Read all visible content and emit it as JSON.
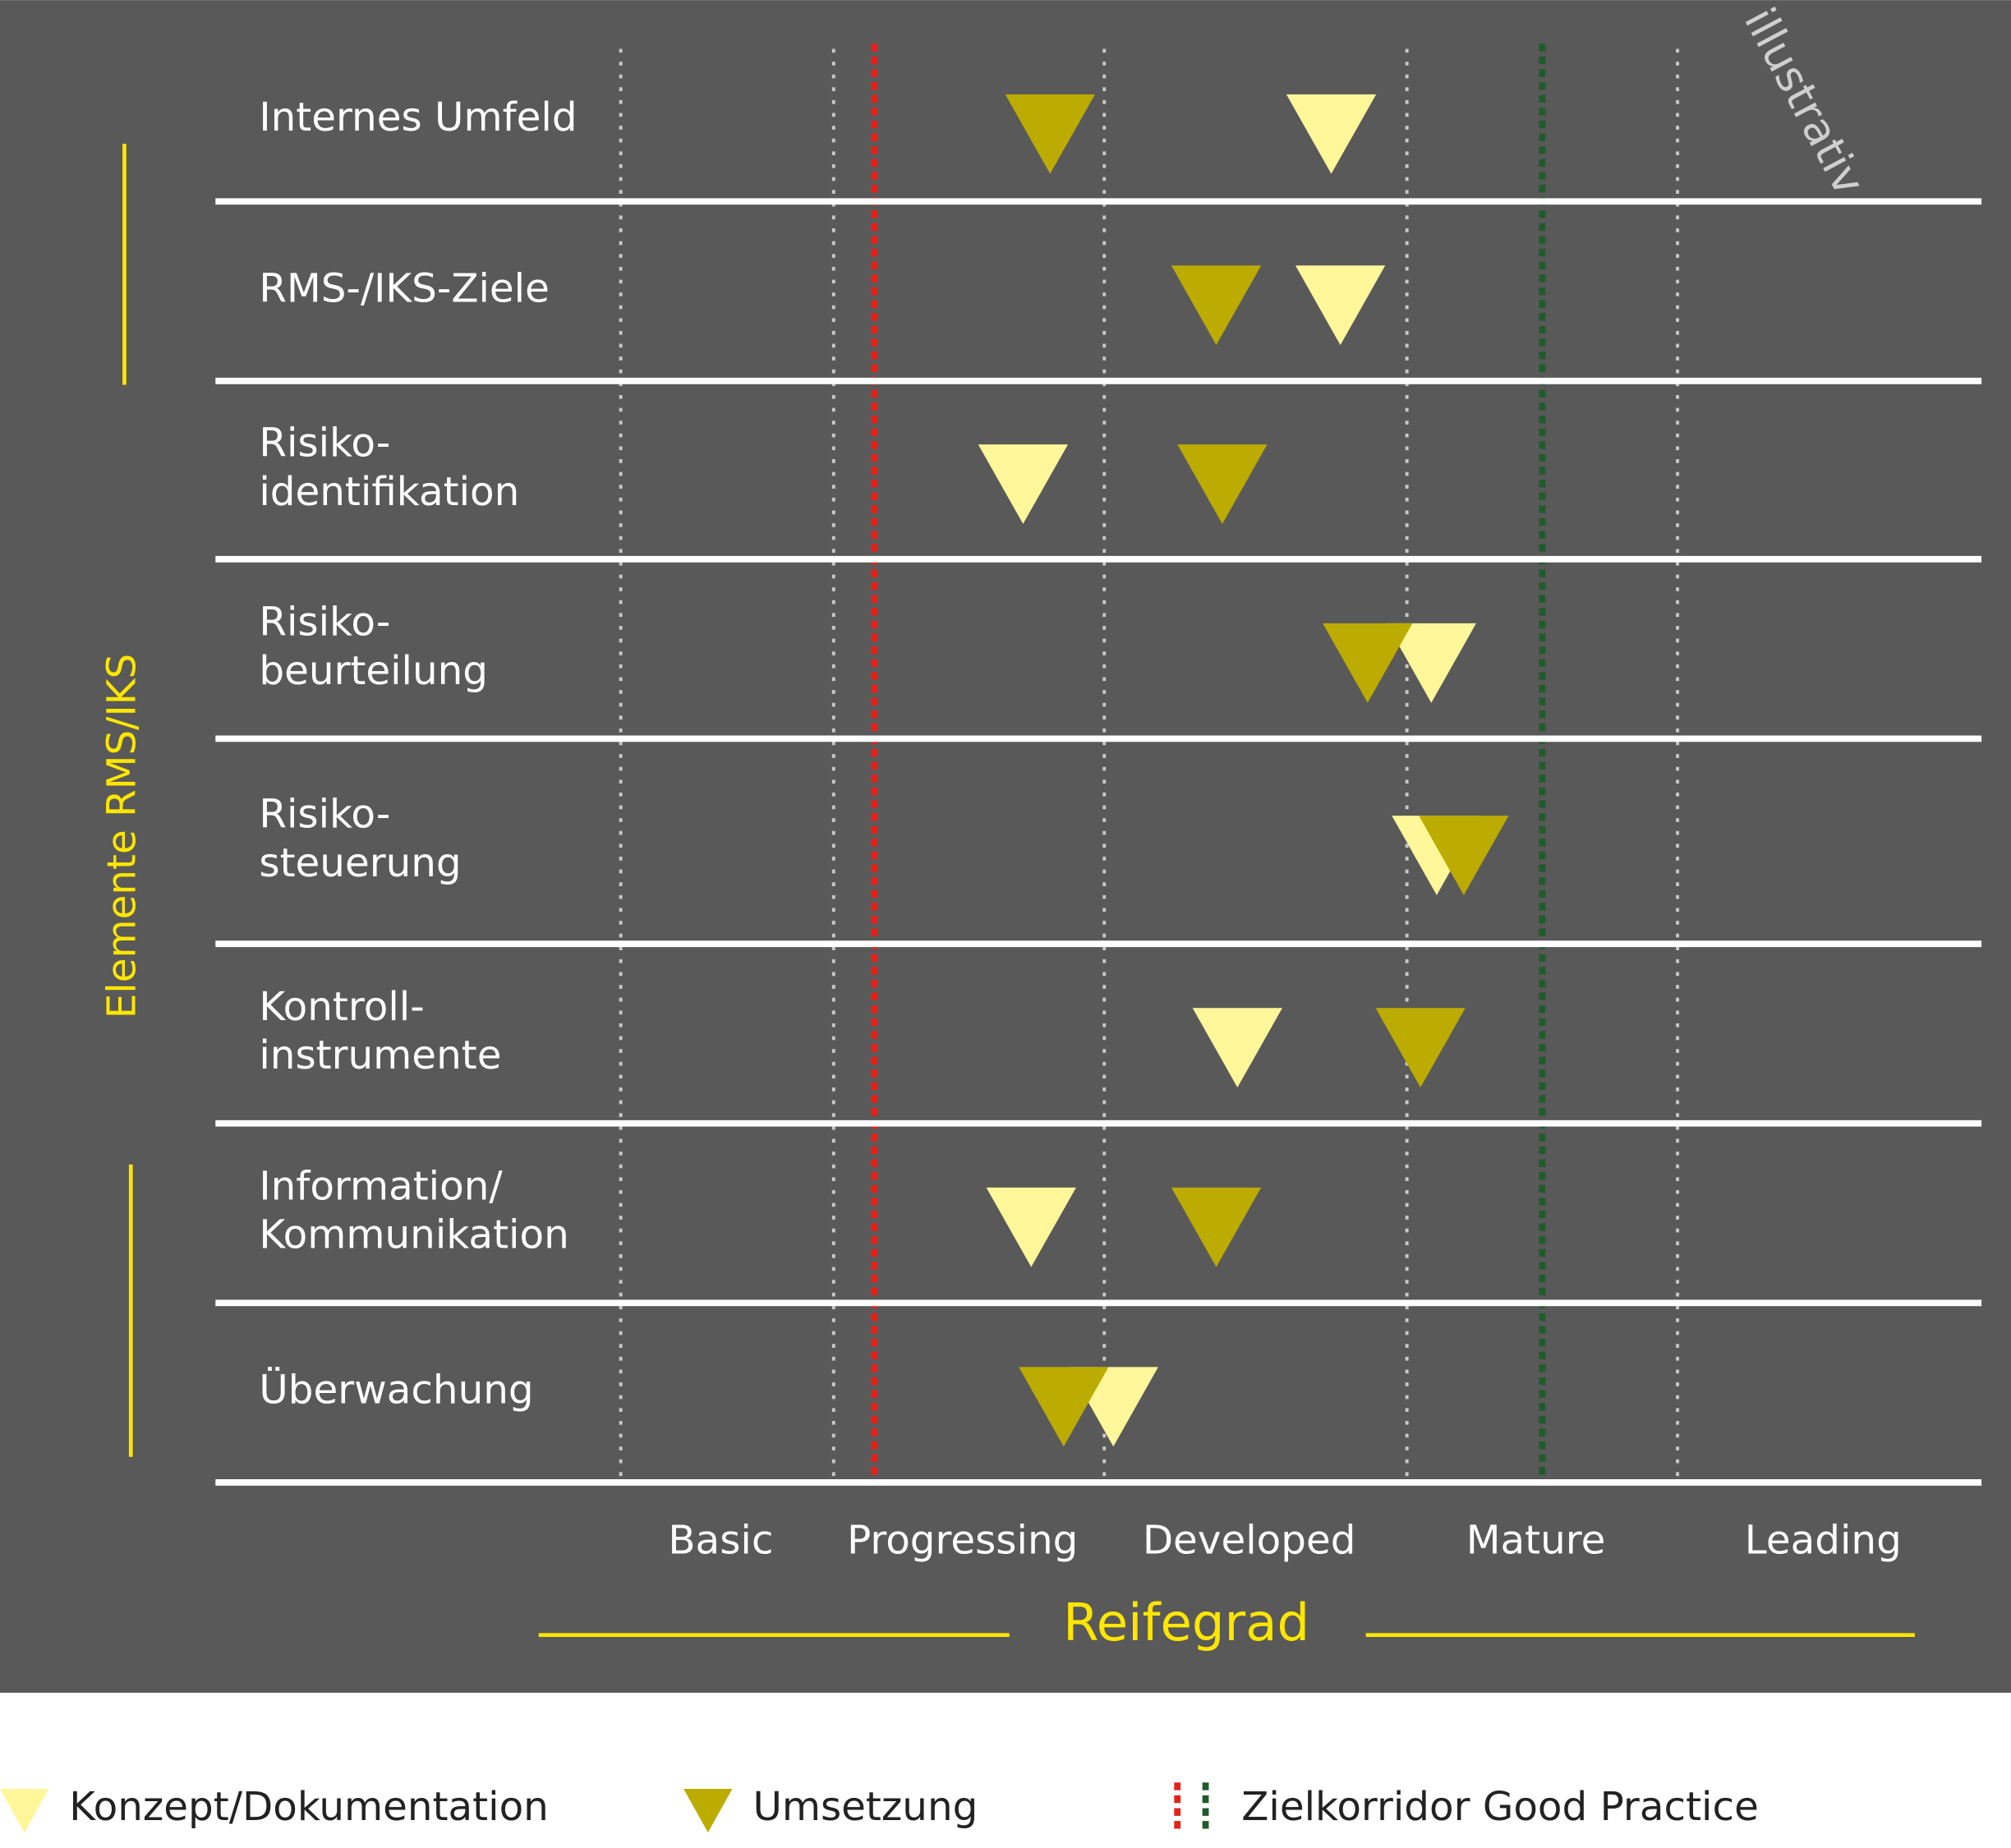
{
  "chart_data": {
    "type": "maturity",
    "ylabel": "Elemente RMS/IKS",
    "xlabel": "Reifegrad",
    "annotation": "illustrativ",
    "categories": [
      [
        "Internes Umfeld"
      ],
      [
        "RMS-/IKS-Ziele"
      ],
      [
        "Risiko-",
        "identifikation"
      ],
      [
        "Risiko-",
        "beurteilung"
      ],
      [
        "Risiko-",
        "steuerung"
      ],
      [
        "Kontroll-",
        "instrumente"
      ],
      [
        "Information/",
        "Kommunikation"
      ],
      [
        "Überwachung"
      ]
    ],
    "levels": [
      "Basic",
      "Progressing",
      "Developed",
      "Mature",
      "Leading"
    ],
    "xlim": [
      0,
      5
    ],
    "xticks": [
      0,
      1,
      2,
      3,
      4
    ],
    "series": [
      {
        "name": "Konzept/Dokumentation",
        "color": "#fff799",
        "values": [
          2.75,
          2.78,
          1.7,
          3.09,
          3.11,
          2.44,
          1.73,
          2.03
        ]
      },
      {
        "name": "Umsetzung",
        "color": "#bcab00",
        "values": [
          1.8,
          2.37,
          2.39,
          2.87,
          3.21,
          3.05,
          2.37,
          1.85
        ]
      }
    ],
    "target_corridor": {
      "name": "Zielkorridor Good Practice",
      "values": [
        1.15,
        3.5
      ],
      "colors": [
        "#e32119",
        "#1f5c2a"
      ]
    }
  }
}
